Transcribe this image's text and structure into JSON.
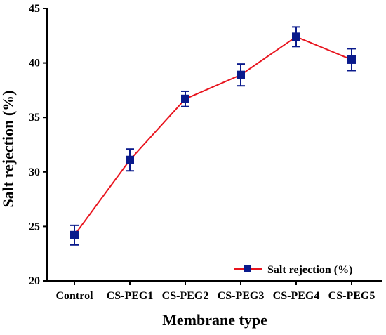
{
  "chart_data": {
    "type": "line",
    "title": "",
    "xlabel": "Membrane type",
    "ylabel": "Salt rejection (%)",
    "categories": [
      "Control",
      "CS-PEG1",
      "CS-PEG2",
      "CS-PEG3",
      "CS-PEG4",
      "CS-PEG5"
    ],
    "series": [
      {
        "name": "Salt rejection (%)",
        "values": [
          24.2,
          31.1,
          36.7,
          38.9,
          42.4,
          40.3
        ],
        "errors": [
          0.9,
          1.0,
          0.7,
          1.0,
          0.9,
          1.0
        ],
        "line_color": "#e8141e",
        "marker_color": "#0a1a8c",
        "marker": "square"
      }
    ],
    "ylim": [
      20,
      45
    ],
    "yticks": [
      20,
      25,
      30,
      35,
      40,
      45
    ],
    "grid": false,
    "legend_position": "bottom-right"
  }
}
